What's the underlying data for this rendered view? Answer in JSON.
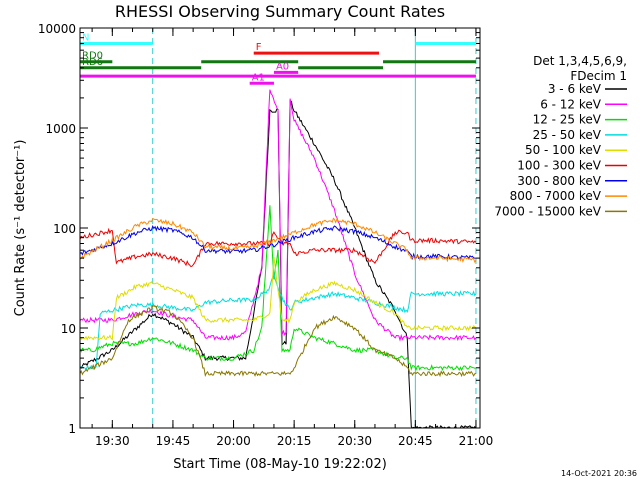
{
  "chart_data": {
    "type": "line",
    "title": "RHESSI Observing Summary Count Rates",
    "xlabel": "Start Time (08-May-10 19:22:02)",
    "ylabel": "Count Rate (s⁻¹ detector⁻¹)",
    "x_range": [
      "19:22",
      "21:01"
    ],
    "x_ticks": [
      "19:30",
      "19:45",
      "20:00",
      "20:15",
      "20:30",
      "20:45",
      "21:00"
    ],
    "y_scale": "log",
    "ylim": [
      1,
      10000
    ],
    "y_ticks": [
      "1",
      "10",
      "100",
      "1000",
      "10000"
    ],
    "grid": false,
    "legend_position": "right",
    "legend_header": [
      "Det 1,3,4,5,6,9,",
      "FDecim 1"
    ],
    "timestamp": "14-Oct-2021 20:36",
    "annotations": {
      "flags": [
        {
          "label": "N",
          "color": "#33ffff",
          "segments": [
            [
              "19:22",
              "19:40"
            ],
            [
              "20:45",
              "21:00"
            ]
          ],
          "level": 7000
        },
        {
          "label": "F",
          "color": "#ee1111",
          "segments": [
            [
              "20:05",
              "20:36"
            ]
          ],
          "level": 5600
        },
        {
          "label": "RD0",
          "color": "#117711",
          "segments": [
            [
              "19:22",
              "19:30"
            ],
            [
              "19:52",
              "20:16"
            ],
            [
              "20:37",
              "21:00"
            ]
          ],
          "level": 4600
        },
        {
          "label": "RD6",
          "color": "#117711",
          "segments": [
            [
              "19:22",
              "19:52"
            ],
            [
              "20:16",
              "20:37"
            ]
          ],
          "level": 4000
        },
        {
          "label": "A0",
          "color": "#ee11ee",
          "segments": [
            [
              "20:10",
              "20:16"
            ]
          ],
          "level": 3600
        },
        {
          "label": "A1",
          "color": "#ee11ee",
          "segments": [
            [
              "20:04",
              "20:10"
            ]
          ],
          "level": 2800
        },
        {
          "label": "",
          "color": "#ee11ee",
          "segments": [
            [
              "19:22",
              "21:00"
            ]
          ],
          "level": 3300
        }
      ],
      "vlines": [
        {
          "time": "19:40",
          "color": "#33cccc",
          "style": "dashed"
        },
        {
          "time": "20:45",
          "color": "#33cccc",
          "style": "solid"
        },
        {
          "time": "21:00",
          "color": "#33cccc",
          "style": "dashed"
        }
      ]
    },
    "series": [
      {
        "name": "3 - 6 keV",
        "color": "#000000",
        "x": [
          "19:22",
          "19:30",
          "19:36",
          "19:40",
          "19:45",
          "19:50",
          "19:53",
          "20:00",
          "20:03",
          "20:07",
          "20:09",
          "20:11",
          "20:12",
          "20:13",
          "20:14",
          "20:15",
          "20:20",
          "20:25",
          "20:30",
          "20:35",
          "20:40",
          "20:43",
          "20:44",
          "20:46",
          "20:48",
          "21:00"
        ],
        "y": [
          4,
          6,
          10,
          14,
          11,
          8,
          5,
          5,
          5,
          40,
          1500,
          1500,
          7,
          7,
          1900,
          1500,
          700,
          300,
          100,
          30,
          15,
          8,
          1,
          1,
          1,
          1
        ]
      },
      {
        "name": "6 - 12 keV",
        "color": "#ff00ff",
        "x": [
          "19:22",
          "19:30",
          "19:36",
          "19:40",
          "19:45",
          "19:50",
          "19:53",
          "20:00",
          "20:03",
          "20:07",
          "20:09",
          "20:11",
          "20:12",
          "20:13",
          "20:14",
          "20:15",
          "20:20",
          "20:25",
          "20:30",
          "20:35",
          "20:40",
          "20:43",
          "20:44",
          "20:46",
          "20:48",
          "21:00"
        ],
        "y": [
          12,
          12,
          14,
          15,
          13,
          12,
          8,
          8,
          9,
          40,
          2500,
          1500,
          9,
          9,
          2000,
          1200,
          500,
          150,
          35,
          12,
          8,
          8,
          8,
          8,
          8,
          8
        ]
      },
      {
        "name": "12 - 25 keV",
        "color": "#00dd00",
        "x": [
          "19:22",
          "19:25",
          "19:30",
          "19:36",
          "19:40",
          "19:45",
          "19:50",
          "19:53",
          "20:00",
          "20:05",
          "20:07",
          "20:09",
          "20:10",
          "20:11",
          "20:12",
          "20:14",
          "20:15",
          "20:20",
          "20:25",
          "20:30",
          "20:35",
          "20:40",
          "20:43",
          "20:44",
          "21:00"
        ],
        "y": [
          6,
          6,
          7,
          7,
          8,
          7,
          6,
          5,
          5,
          6,
          10,
          170,
          30,
          60,
          6,
          6,
          10,
          8,
          7,
          6,
          6,
          5,
          5,
          4,
          4
        ]
      },
      {
        "name": "25 - 50 keV",
        "color": "#00dddd",
        "x": [
          "19:22",
          "19:26",
          "19:27",
          "19:30",
          "19:36",
          "19:40",
          "19:45",
          "19:50",
          "19:53",
          "20:00",
          "20:05",
          "20:09",
          "20:10",
          "20:12",
          "20:14",
          "20:15",
          "20:20",
          "20:25",
          "20:30",
          "20:35",
          "20:40",
          "20:43",
          "20:44",
          "21:00"
        ],
        "y": [
          4,
          4,
          14,
          15,
          17,
          17,
          16,
          15,
          18,
          19,
          19,
          25,
          35,
          20,
          15,
          18,
          20,
          22,
          20,
          18,
          16,
          15,
          22,
          22
        ]
      },
      {
        "name": "50 - 100 keV",
        "color": "#dddd00",
        "x": [
          "19:22",
          "19:30",
          "19:31",
          "19:36",
          "19:40",
          "19:45",
          "19:50",
          "19:53",
          "20:00",
          "20:05",
          "20:09",
          "20:10",
          "20:12",
          "20:14",
          "20:15",
          "20:20",
          "20:25",
          "20:30",
          "20:35",
          "20:40",
          "20:43",
          "20:44",
          "21:00"
        ],
        "y": [
          8,
          8,
          20,
          26,
          28,
          24,
          20,
          12,
          12,
          12,
          14,
          50,
          12,
          12,
          18,
          24,
          28,
          24,
          18,
          14,
          10,
          10,
          10
        ]
      },
      {
        "name": "100 - 300 keV",
        "color": "#ee0000",
        "x": [
          "19:22",
          "19:30",
          "19:31",
          "19:36",
          "19:40",
          "19:45",
          "19:50",
          "19:53",
          "20:00",
          "20:05",
          "20:09",
          "20:10",
          "20:12",
          "20:14",
          "20:15",
          "20:20",
          "20:25",
          "20:30",
          "20:35",
          "20:40",
          "20:43",
          "20:44",
          "20:50",
          "21:00"
        ],
        "y": [
          80,
          95,
          45,
          52,
          55,
          50,
          42,
          70,
          70,
          70,
          70,
          90,
          70,
          70,
          55,
          60,
          60,
          60,
          45,
          90,
          90,
          75,
          75,
          72
        ]
      },
      {
        "name": "300 - 800 keV",
        "color": "#0000ee",
        "x": [
          "19:22",
          "19:30",
          "19:36",
          "19:40",
          "19:45",
          "19:50",
          "19:53",
          "20:00",
          "20:05",
          "20:10",
          "20:15",
          "20:20",
          "20:25",
          "20:30",
          "20:35",
          "20:40",
          "20:43",
          "20:44",
          "20:50",
          "21:00"
        ],
        "y": [
          55,
          70,
          90,
          100,
          95,
          80,
          60,
          58,
          60,
          68,
          80,
          92,
          100,
          92,
          80,
          65,
          58,
          52,
          52,
          50
        ]
      },
      {
        "name": "800 - 7000 keV",
        "color": "#ff8800",
        "x": [
          "19:22",
          "19:30",
          "19:36",
          "19:40",
          "19:45",
          "19:50",
          "19:53",
          "20:00",
          "20:05",
          "20:10",
          "20:15",
          "20:20",
          "20:25",
          "20:30",
          "20:35",
          "20:40",
          "20:43",
          "20:44",
          "20:50",
          "21:00"
        ],
        "y": [
          50,
          75,
          105,
          120,
          110,
          90,
          65,
          62,
          65,
          75,
          90,
          108,
          120,
          110,
          90,
          70,
          60,
          50,
          50,
          48
        ]
      },
      {
        "name": "7000 - 15000 keV",
        "color": "#887700",
        "x": [
          "19:22",
          "19:30",
          "19:34",
          "19:40",
          "19:45",
          "19:50",
          "19:53",
          "20:00",
          "20:05",
          "20:09",
          "20:12",
          "20:14",
          "20:15",
          "20:20",
          "20:25",
          "20:30",
          "20:35",
          "20:40",
          "20:43",
          "20:44",
          "21:00"
        ],
        "y": [
          3.5,
          5,
          12,
          16,
          14,
          8,
          3.5,
          3.5,
          3.5,
          3.5,
          3.5,
          3.5,
          4,
          10,
          13,
          10,
          6,
          5,
          4,
          3.5,
          3.5
        ]
      }
    ]
  }
}
